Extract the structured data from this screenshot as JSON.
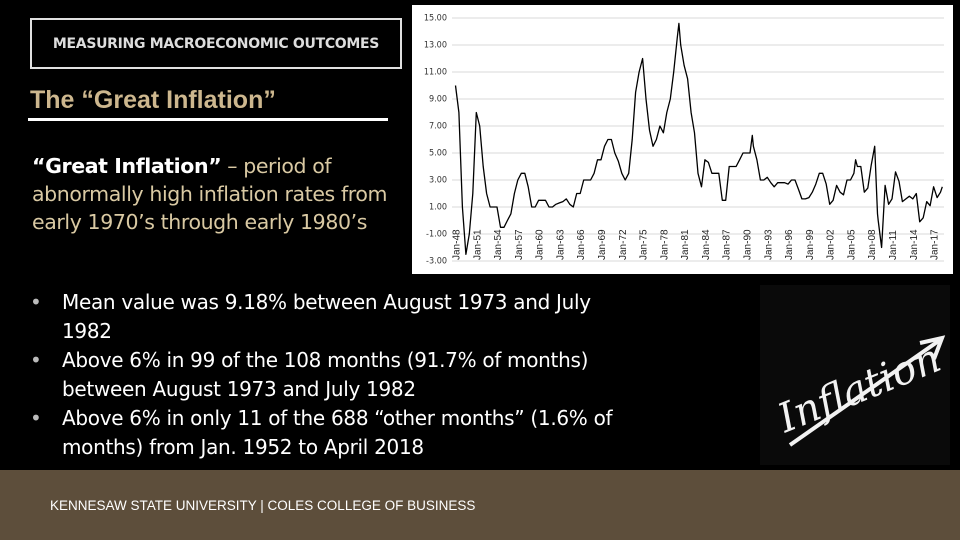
{
  "header": "MEASURING MACROECONOMIC OUTCOMES",
  "title": "The “Great Inflation”",
  "definition": {
    "term": "“Great Inflation”",
    "text": "– period of abnormally high inflation rates from early 1970’s through early 1980’s"
  },
  "bullets": [
    "Mean value was 9.18% between August 1973 and July 1982",
    "Above 6% in 99 of the 108 months (91.7% of months) between August 1973 and July 1982",
    "Above 6% in only 11 of the 688 “other months” (1.6% of months) from Jan. 1952 to April 2018"
  ],
  "image_text": "Inflation",
  "footer": "KENNESAW STATE UNIVERSITY | COLES COLLEGE OF BUSINESS",
  "chart_data": {
    "type": "line",
    "color": "#000000",
    "grid": true,
    "x": [
      1948,
      1948.5,
      1949,
      1949.5,
      1950,
      1950.5,
      1951,
      1951.5,
      1952,
      1952.5,
      1953,
      1953.5,
      1954,
      1954.5,
      1955,
      1955.5,
      1956,
      1956.5,
      1957,
      1957.5,
      1958,
      1958.5,
      1959,
      1959.5,
      1960,
      1960.5,
      1961,
      1961.5,
      1962,
      1962.5,
      1963,
      1963.5,
      1964,
      1964.5,
      1965,
      1965.5,
      1966,
      1966.5,
      1967,
      1967.5,
      1968,
      1968.5,
      1969,
      1969.5,
      1970,
      1970.5,
      1971,
      1971.5,
      1972,
      1972.5,
      1973,
      1973.5,
      1974,
      1974.5,
      1975,
      1975.5,
      1976,
      1976.5,
      1977,
      1977.5,
      1978,
      1978.5,
      1979,
      1979.5,
      1980,
      1980.25,
      1980.5,
      1981,
      1981.5,
      1982,
      1982.5,
      1983,
      1983.5,
      1984,
      1984.5,
      1985,
      1985.5,
      1986,
      1986.5,
      1987,
      1987.5,
      1988,
      1988.5,
      1989,
      1989.5,
      1990,
      1990.5,
      1990.83,
      1991,
      1991.5,
      1992,
      1992.5,
      1993,
      1993.5,
      1994,
      1994.5,
      1995,
      1995.5,
      1996,
      1996.5,
      1997,
      1997.5,
      1998,
      1998.5,
      1999,
      1999.5,
      2000,
      2000.5,
      2001,
      2001.5,
      2002,
      2002.5,
      2003,
      2003.5,
      2004,
      2004.5,
      2005,
      2005.5,
      2005.75,
      2006,
      2006.5,
      2007,
      2007.5,
      2008,
      2008.5,
      2008.9,
      2009,
      2009.5,
      2010,
      2010.5,
      2011,
      2011.5,
      2012,
      2012.5,
      2013,
      2013.5,
      2014,
      2014.5,
      2015,
      2015.5,
      2016,
      2016.5,
      2017,
      2017.5,
      2018,
      2018.25
    ],
    "values": [
      10,
      8,
      1,
      -2.5,
      -1,
      2,
      8,
      7,
      4,
      2,
      1,
      1,
      1,
      -0.5,
      -0.5,
      0,
      0.5,
      2,
      3,
      3.5,
      3.5,
      2.5,
      1,
      1,
      1.5,
      1.5,
      1.5,
      1,
      1,
      1.2,
      1.3,
      1.4,
      1.6,
      1.2,
      1,
      2,
      2,
      3,
      3,
      3,
      3.5,
      4.5,
      4.5,
      5.5,
      6,
      6,
      5,
      4.4,
      3.5,
      3,
      3.5,
      6,
      9.5,
      11,
      12,
      9,
      6.7,
      5.5,
      6,
      7,
      6.5,
      8,
      9,
      11,
      13.5,
      14.6,
      13,
      11.5,
      10.5,
      8,
      6.5,
      3.5,
      2.5,
      4.5,
      4.3,
      3.5,
      3.5,
      3.5,
      1.5,
      1.5,
      4,
      4,
      4,
      4.5,
      5,
      5,
      5,
      6.3,
      5.5,
      4.5,
      3,
      3,
      3.2,
      2.8,
      2.5,
      2.8,
      2.8,
      2.8,
      2.7,
      3,
      3,
      2.3,
      1.6,
      1.6,
      1.7,
      2.1,
      2.7,
      3.5,
      3.5,
      2.7,
      1.2,
      1.5,
      2.6,
      2.1,
      1.9,
      3,
      3,
      3.5,
      4.5,
      4,
      4,
      2.1,
      2.4,
      4.1,
      5.5,
      0.5,
      0,
      -2,
      2.6,
      1.2,
      1.6,
      3.6,
      2.9,
      1.4,
      1.6,
      1.8,
      1.6,
      2,
      -0.1,
      0.2,
      1.4,
      1.1,
      2.5,
      1.7,
      2.1,
      2.5
    ],
    "xlim": [
      1947.5,
      2018.5
    ],
    "xticks": [
      {
        "value": 1948,
        "label": "Jan-48"
      },
      {
        "value": 1951,
        "label": "Jan-51"
      },
      {
        "value": 1954,
        "label": "Jan-54"
      },
      {
        "value": 1957,
        "label": "Jan-57"
      },
      {
        "value": 1960,
        "label": "Jan-60"
      },
      {
        "value": 1963,
        "label": "Jan-63"
      },
      {
        "value": 1966,
        "label": "Jan-66"
      },
      {
        "value": 1969,
        "label": "Jan-69"
      },
      {
        "value": 1972,
        "label": "Jan-72"
      },
      {
        "value": 1975,
        "label": "Jan-75"
      },
      {
        "value": 1978,
        "label": "Jan-78"
      },
      {
        "value": 1981,
        "label": "Jan-81"
      },
      {
        "value": 1984,
        "label": "Jan-84"
      },
      {
        "value": 1987,
        "label": "Jan-87"
      },
      {
        "value": 1990,
        "label": "Jan-90"
      },
      {
        "value": 1993,
        "label": "Jan-93"
      },
      {
        "value": 1996,
        "label": "Jan-96"
      },
      {
        "value": 1999,
        "label": "Jan-99"
      },
      {
        "value": 2002,
        "label": "Jan-02"
      },
      {
        "value": 2005,
        "label": "Jan-05"
      },
      {
        "value": 2008,
        "label": "Jan-08"
      },
      {
        "value": 2011,
        "label": "Jan-11"
      },
      {
        "value": 2014,
        "label": "Jan-14"
      },
      {
        "value": 2017,
        "label": "Jan-17"
      }
    ],
    "ylim": [
      -3,
      15
    ],
    "yticks": [
      {
        "value": 15,
        "label": "15.00"
      },
      {
        "value": 13,
        "label": "13.00"
      },
      {
        "value": 11,
        "label": "11.00"
      },
      {
        "value": 9,
        "label": "9.00"
      },
      {
        "value": 7,
        "label": "7.00"
      },
      {
        "value": 5,
        "label": "5.00"
      },
      {
        "value": 3,
        "label": "3.00"
      },
      {
        "value": 1,
        "label": "1.00"
      },
      {
        "value": -1,
        "label": "-1.00"
      },
      {
        "value": -3,
        "label": "-3.00"
      }
    ]
  }
}
